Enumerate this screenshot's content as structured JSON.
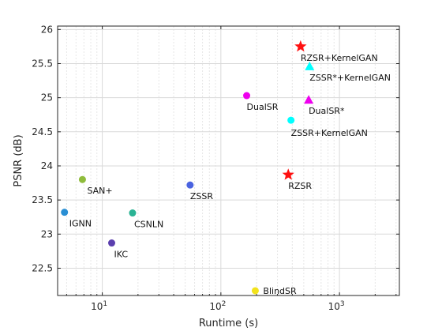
{
  "chart_data": {
    "type": "scatter",
    "title": "",
    "xlabel": "Runtime (s)",
    "ylabel": "PSNR (dB)",
    "xscale": "log",
    "xlim": [
      4.2,
      3200
    ],
    "ylim": [
      22.1,
      26.05
    ],
    "grid": true,
    "legend": "none",
    "xticks": [
      10,
      100,
      1000
    ],
    "xtick_labels": [
      {
        "base": "10",
        "exp": "1"
      },
      {
        "base": "10",
        "exp": "2"
      },
      {
        "base": "10",
        "exp": "3"
      }
    ],
    "yticks": [
      22.5,
      23,
      23.5,
      24,
      24.5,
      25,
      25.5,
      26
    ],
    "ytick_labels": [
      "22.5",
      "23",
      "23.5",
      "24",
      "24.5",
      "25",
      "25.5",
      "26"
    ],
    "points": [
      {
        "label": "IGNN",
        "x": 4.8,
        "y": 23.32,
        "marker": "circle",
        "color": "#2a8fd4"
      },
      {
        "label": "SAN+",
        "x": 6.8,
        "y": 23.8,
        "marker": "circle",
        "color": "#8fbc3c"
      },
      {
        "label": "IKC",
        "x": 12,
        "y": 22.87,
        "marker": "circle",
        "color": "#5b3fae"
      },
      {
        "label": "CSNLN",
        "x": 18,
        "y": 23.31,
        "marker": "circle",
        "color": "#2ab394"
      },
      {
        "label": "ZSSR",
        "x": 55,
        "y": 23.72,
        "marker": "circle",
        "color": "#4a63e0"
      },
      {
        "label": "DualSR",
        "x": 165,
        "y": 25.03,
        "marker": "circle",
        "color": "#ee00ee"
      },
      {
        "label": "BlindSR",
        "x": 195,
        "y": 22.17,
        "marker": "circle",
        "color": "#f2e21c"
      },
      {
        "label": "ZSSR+KernelGAN",
        "x": 390,
        "y": 24.67,
        "marker": "circle",
        "color": "#00ffff"
      },
      {
        "label": "RZSR",
        "x": 370,
        "y": 23.87,
        "marker": "star",
        "color": "#ff1010"
      },
      {
        "label": "RZSR+KernelGAN",
        "x": 470,
        "y": 25.75,
        "marker": "star",
        "color": "#ff1010"
      },
      {
        "label": "ZSSR*+KernelGAN",
        "x": 560,
        "y": 25.46,
        "marker": "triangle",
        "color": "#00ffff"
      },
      {
        "label": "DualSR*",
        "x": 550,
        "y": 24.97,
        "marker": "triangle",
        "color": "#ee00ee"
      }
    ]
  }
}
